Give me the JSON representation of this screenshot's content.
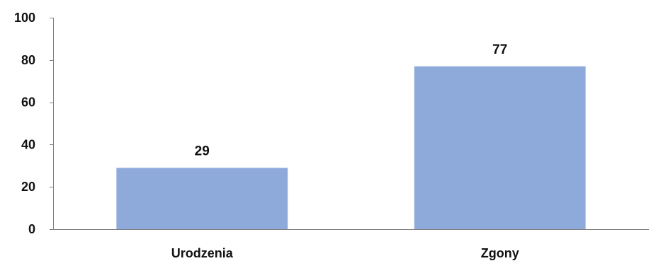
{
  "chart_data": {
    "type": "bar",
    "categories": [
      "Urodzenia",
      "Zgony"
    ],
    "values": [
      29,
      77
    ],
    "data_labels": [
      "29",
      "77"
    ],
    "ylim": [
      0,
      100
    ],
    "y_ticks": [
      0,
      20,
      40,
      60,
      80,
      100
    ],
    "y_tick_labels": [
      "0",
      "20",
      "40",
      "60",
      "80",
      "100"
    ],
    "title": "",
    "xlabel": "",
    "ylabel": "",
    "grid": false,
    "legend": "none",
    "bar_color": "#8eaadb"
  }
}
